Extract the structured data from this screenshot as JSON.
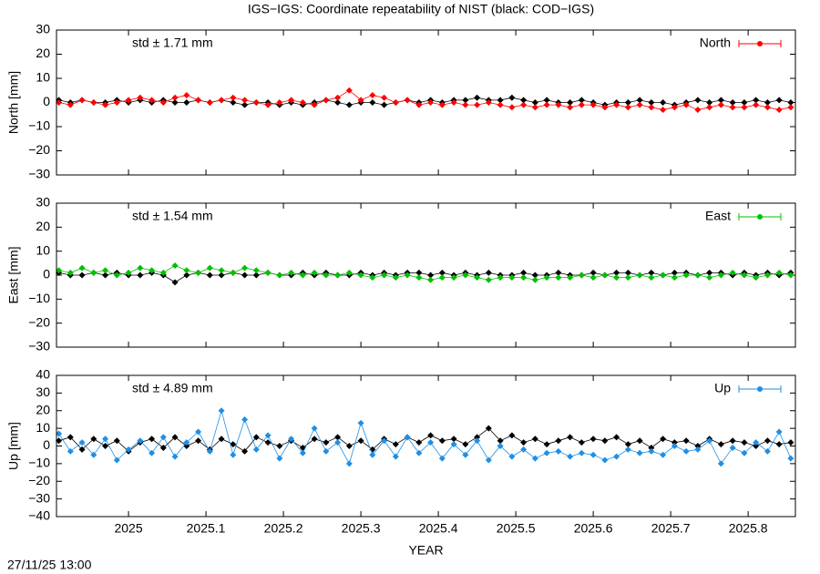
{
  "title": "IGS−IGS: Coordinate repeatability of NIST (black: COD−IGS)",
  "timestamp": "27/11/25 13:00",
  "chart_data": [
    {
      "type": "line",
      "ylabel": "North [mm]",
      "annotation": "std ± 1.71 mm",
      "legend": "top-right",
      "x": [
        2024.91,
        2024.925,
        2024.94,
        2024.955,
        2024.97,
        2024.985,
        2025,
        2025.015,
        2025.03,
        2025.045,
        2025.06,
        2025.075,
        2025.09,
        2025.105,
        2025.12,
        2025.135,
        2025.15,
        2025.165,
        2025.18,
        2025.195,
        2025.21,
        2025.225,
        2025.24,
        2025.255,
        2025.27,
        2025.285,
        2025.3,
        2025.315,
        2025.33,
        2025.345,
        2025.36,
        2025.375,
        2025.39,
        2025.405,
        2025.42,
        2025.435,
        2025.45,
        2025.465,
        2025.48,
        2025.495,
        2025.51,
        2025.525,
        2025.54,
        2025.555,
        2025.57,
        2025.585,
        2025.6,
        2025.615,
        2025.63,
        2025.645,
        2025.66,
        2025.675,
        2025.69,
        2025.705,
        2025.72,
        2025.735,
        2025.75,
        2025.765,
        2025.78,
        2025.795,
        2025.81,
        2025.825,
        2025.84,
        2025.855
      ],
      "series": [
        {
          "color": "#000000",
          "values": [
            1,
            0,
            1,
            0,
            0,
            1,
            0,
            1,
            0,
            1,
            0,
            0,
            1,
            0,
            1,
            0,
            -1,
            0,
            0,
            -1,
            0,
            -1,
            0,
            1,
            0,
            -1,
            0,
            0,
            -1,
            0,
            1,
            0,
            1,
            0,
            1,
            1,
            2,
            1,
            1,
            2,
            1,
            0,
            1,
            0,
            0,
            1,
            0,
            -1,
            0,
            0,
            1,
            0,
            0,
            -1,
            0,
            1,
            0,
            1,
            0,
            0,
            1,
            0,
            1,
            0
          ]
        },
        {
          "name": "North",
          "color": "#ff0000",
          "values": [
            0,
            -1,
            1,
            0,
            -1,
            0,
            1,
            2,
            1,
            0,
            2,
            3,
            1,
            0,
            1,
            2,
            1,
            0,
            -1,
            0,
            1,
            0,
            -1,
            1,
            2,
            5,
            1,
            3,
            2,
            0,
            1,
            -1,
            0,
            -1,
            0,
            -1,
            -1,
            0,
            -1,
            -2,
            -1,
            -2,
            -1,
            -1,
            -2,
            -1,
            -1,
            -2,
            -1,
            -2,
            -1,
            -2,
            -3,
            -2,
            -1,
            -3,
            -2,
            -1,
            -2,
            -2,
            -1,
            -2,
            -3,
            -2
          ]
        }
      ],
      "xlim": [
        2024.907,
        2025.861
      ],
      "xticks": [
        2025,
        2025.1,
        2025.2,
        2025.3,
        2025.4,
        2025.5,
        2025.6,
        2025.7,
        2025.8
      ],
      "ylim": [
        -30,
        30
      ],
      "yticks": [
        {
          "value": -30,
          "label": "−30"
        },
        {
          "value": -20,
          "label": "−20"
        },
        {
          "value": -10,
          "label": "−10"
        },
        0,
        10,
        20,
        30
      ]
    },
    {
      "type": "line",
      "ylabel": "East [mm]",
      "annotation": "std ± 1.54 mm",
      "legend": "top-right",
      "x": [
        2024.91,
        2024.925,
        2024.94,
        2024.955,
        2024.97,
        2024.985,
        2025,
        2025.015,
        2025.03,
        2025.045,
        2025.06,
        2025.075,
        2025.09,
        2025.105,
        2025.12,
        2025.135,
        2025.15,
        2025.165,
        2025.18,
        2025.195,
        2025.21,
        2025.225,
        2025.24,
        2025.255,
        2025.27,
        2025.285,
        2025.3,
        2025.315,
        2025.33,
        2025.345,
        2025.36,
        2025.375,
        2025.39,
        2025.405,
        2025.42,
        2025.435,
        2025.45,
        2025.465,
        2025.48,
        2025.495,
        2025.51,
        2025.525,
        2025.54,
        2025.555,
        2025.57,
        2025.585,
        2025.6,
        2025.615,
        2025.63,
        2025.645,
        2025.66,
        2025.675,
        2025.69,
        2025.705,
        2025.72,
        2025.735,
        2025.75,
        2025.765,
        2025.78,
        2025.795,
        2025.81,
        2025.825,
        2025.84,
        2025.855
      ],
      "series": [
        {
          "color": "#000000",
          "values": [
            1,
            0,
            0,
            1,
            0,
            1,
            0,
            0,
            1,
            0,
            -3,
            0,
            1,
            0,
            0,
            1,
            0,
            0,
            1,
            0,
            0,
            1,
            0,
            1,
            0,
            0,
            1,
            0,
            1,
            0,
            1,
            1,
            0,
            1,
            0,
            1,
            0,
            1,
            0,
            0,
            1,
            0,
            0,
            1,
            0,
            0,
            1,
            0,
            1,
            1,
            0,
            1,
            0,
            1,
            1,
            0,
            1,
            1,
            0,
            1,
            0,
            1,
            0,
            1
          ]
        },
        {
          "name": "East",
          "color": "#00c000",
          "values": [
            2,
            1,
            3,
            1,
            2,
            0,
            1,
            3,
            2,
            1,
            4,
            2,
            1,
            3,
            2,
            1,
            3,
            2,
            1,
            0,
            1,
            0,
            1,
            0,
            0,
            1,
            0,
            -1,
            0,
            -1,
            0,
            -1,
            -2,
            -1,
            -1,
            0,
            -1,
            -2,
            -1,
            -1,
            -1,
            -2,
            -1,
            -1,
            -1,
            0,
            -1,
            0,
            -1,
            -1,
            0,
            -1,
            0,
            -1,
            0,
            0,
            -1,
            0,
            1,
            0,
            -1,
            0,
            1,
            0
          ]
        }
      ],
      "xlim": [
        2024.907,
        2025.861
      ],
      "xticks": [
        2025,
        2025.1,
        2025.2,
        2025.3,
        2025.4,
        2025.5,
        2025.6,
        2025.7,
        2025.8
      ],
      "ylim": [
        -30,
        30
      ],
      "yticks": [
        {
          "value": -30,
          "label": "−30"
        },
        {
          "value": -20,
          "label": "−20"
        },
        {
          "value": -10,
          "label": "−10"
        },
        0,
        10,
        20,
        30
      ]
    },
    {
      "type": "line",
      "ylabel": "Up [mm]",
      "xlabel": "YEAR",
      "annotation": "std ± 4.89 mm",
      "legend": "top-right",
      "x": [
        2024.91,
        2024.925,
        2024.94,
        2024.955,
        2024.97,
        2024.985,
        2025,
        2025.015,
        2025.03,
        2025.045,
        2025.06,
        2025.075,
        2025.09,
        2025.105,
        2025.12,
        2025.135,
        2025.15,
        2025.165,
        2025.18,
        2025.195,
        2025.21,
        2025.225,
        2025.24,
        2025.255,
        2025.27,
        2025.285,
        2025.3,
        2025.315,
        2025.33,
        2025.345,
        2025.36,
        2025.375,
        2025.39,
        2025.405,
        2025.42,
        2025.435,
        2025.45,
        2025.465,
        2025.48,
        2025.495,
        2025.51,
        2025.525,
        2025.54,
        2025.555,
        2025.57,
        2025.585,
        2025.6,
        2025.615,
        2025.63,
        2025.645,
        2025.66,
        2025.675,
        2025.69,
        2025.705,
        2025.72,
        2025.735,
        2025.75,
        2025.765,
        2025.78,
        2025.795,
        2025.81,
        2025.825,
        2025.84,
        2025.855
      ],
      "series": [
        {
          "color": "#000000",
          "values": [
            3,
            5,
            -2,
            4,
            0,
            3,
            -3,
            2,
            4,
            -1,
            5,
            0,
            3,
            -2,
            4,
            1,
            -3,
            5,
            2,
            0,
            3,
            -1,
            4,
            2,
            5,
            0,
            3,
            -2,
            4,
            1,
            5,
            2,
            6,
            3,
            4,
            1,
            5,
            10,
            3,
            6,
            2,
            4,
            1,
            3,
            5,
            2,
            4,
            3,
            5,
            1,
            3,
            -1,
            4,
            2,
            3,
            0,
            4,
            1,
            3,
            2,
            0,
            3,
            1,
            2
          ]
        },
        {
          "name": "Up",
          "color": "#1e8fe6",
          "values": [
            7,
            -3,
            2,
            -5,
            4,
            -8,
            -2,
            3,
            -4,
            5,
            -6,
            2,
            8,
            -3,
            20,
            -5,
            15,
            -2,
            6,
            -7,
            4,
            -4,
            10,
            -3,
            2,
            -10,
            13,
            -5,
            3,
            -6,
            5,
            -4,
            2,
            -7,
            1,
            -5,
            3,
            -8,
            0,
            -6,
            -2,
            -7,
            -4,
            -3,
            -6,
            -4,
            -5,
            -8,
            -6,
            -2,
            -4,
            -3,
            -5,
            0,
            -3,
            -2,
            3,
            -10,
            -1,
            -4,
            2,
            -3,
            8,
            -7
          ]
        }
      ],
      "xlim": [
        2024.907,
        2025.861
      ],
      "xticks": [
        2025,
        2025.1,
        2025.2,
        2025.3,
        2025.4,
        2025.5,
        2025.6,
        2025.7,
        2025.8
      ],
      "ylim": [
        -40,
        40
      ],
      "yticks": [
        {
          "value": -40,
          "label": "−40"
        },
        {
          "value": -30,
          "label": "−30"
        },
        {
          "value": -20,
          "label": "−20"
        },
        {
          "value": -10,
          "label": "−10"
        },
        0,
        10,
        20,
        30,
        40
      ]
    }
  ]
}
